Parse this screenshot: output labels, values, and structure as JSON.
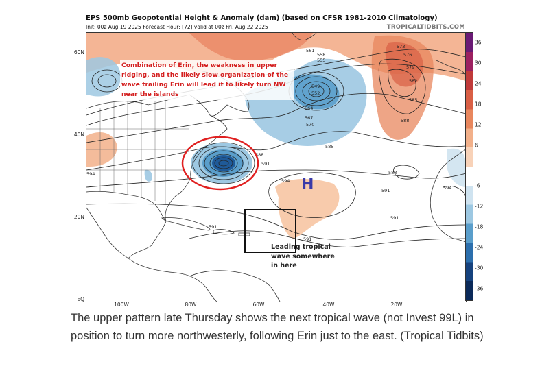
{
  "map": {
    "title": "EPS 500mb Geopotential Height & Anomaly (dam) (based on CFSR 1981-2010 Climatology)",
    "subtitle": "Init: 00z Aug 19 2025    Forecast Hour: [72]    valid at 00z Fri, Aug 22 2025",
    "watermark": "TROPICALTIDBITS.COM",
    "lat_labels": [
      "60N",
      "40N",
      "20N",
      "EQ"
    ],
    "lon_labels": [
      "100W",
      "80W",
      "60W",
      "40W",
      "20W"
    ],
    "colorbar": {
      "labels": [
        "36",
        "30",
        "24",
        "18",
        "12",
        "6",
        "-6",
        "-12",
        "-18",
        "-24",
        "-30",
        "-36"
      ],
      "colors": [
        "#6a1a75",
        "#9c2060",
        "#c03a3a",
        "#d95f45",
        "#e8875e",
        "#f2b08a",
        "#f8d2b8",
        "#ffffff",
        "#cfe3f0",
        "#9dc8e2",
        "#5a9ecb",
        "#2c6fad",
        "#16427e",
        "#0b2a5a"
      ]
    },
    "contour_labels": [
      {
        "text": "573"
      },
      {
        "text": "576"
      },
      {
        "text": "579"
      },
      {
        "text": "582"
      },
      {
        "text": "585"
      },
      {
        "text": "588"
      },
      {
        "text": "561"
      },
      {
        "text": "558"
      },
      {
        "text": "555"
      },
      {
        "text": "549"
      },
      {
        "text": "552"
      },
      {
        "text": "564"
      },
      {
        "text": "567"
      },
      {
        "text": "570"
      },
      {
        "text": "588"
      },
      {
        "text": "591"
      },
      {
        "text": "594"
      },
      {
        "text": "594"
      },
      {
        "text": "591"
      },
      {
        "text": "591"
      },
      {
        "text": "591"
      },
      {
        "text": "591"
      },
      {
        "text": "585"
      },
      {
        "text": "588"
      },
      {
        "text": "594"
      }
    ]
  },
  "annotations": {
    "erin_note": "Combination of Erin, the weakness in upper ridging, and the likely slow organization of the wave trailing Erin will lead it to likely turn NW near the islands",
    "wave_note": "Leading tropical wave somewhere in here",
    "high_marker": "H"
  },
  "caption": "The upper pattern late Thursday shows the next tropical wave (not Invest 99L) in position to turn more northwesterly, following Erin just to the east. (Tropical Tidbits)"
}
